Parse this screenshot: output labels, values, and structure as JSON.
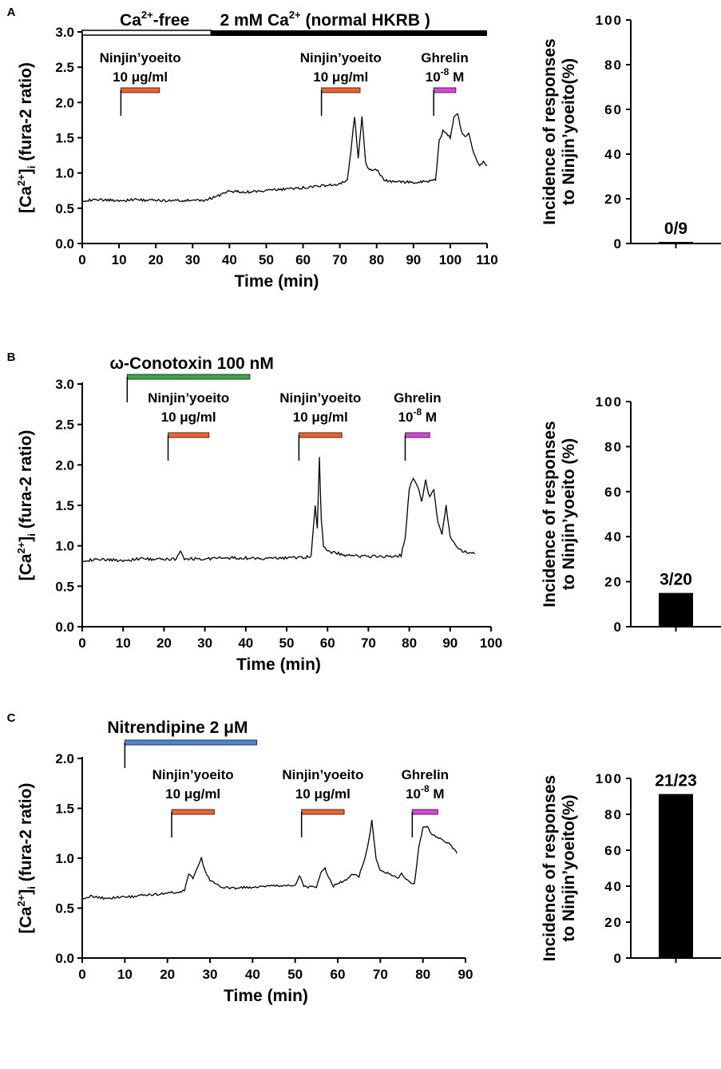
{
  "chart_data": [
    {
      "panel": "A",
      "type": "line",
      "title": "",
      "xlabel": "Time (min)",
      "ylabel": "[Ca2+]i (fura-2 ratio)",
      "ylabel_parts": {
        "pre": "[Ca",
        "sup": "2+",
        "mid": "]",
        "sub": "i",
        "post": " (fura-2 ratio)"
      },
      "xlim": [
        0,
        110
      ],
      "ylim": [
        0,
        3.0
      ],
      "xticks": [
        0,
        10,
        20,
        30,
        40,
        50,
        60,
        70,
        80,
        90,
        100,
        110
      ],
      "yticks": [
        0.0,
        0.5,
        1.0,
        1.5,
        2.0,
        2.5,
        3.0
      ],
      "ytick_labels": [
        "0.0",
        "0.5",
        "1.0",
        "1.5",
        "2.0",
        "2.5",
        "3.0"
      ],
      "series": [
        {
          "name": "[Ca2+]i",
          "x": [
            0,
            5,
            10,
            15,
            20,
            25,
            30,
            33,
            36,
            40,
            45,
            50,
            55,
            60,
            65,
            68,
            70,
            72,
            73,
            74,
            75,
            76,
            77,
            78,
            80,
            82,
            85,
            90,
            94,
            96,
            97,
            98,
            100,
            101,
            102,
            103,
            104,
            105,
            106,
            107,
            108,
            109,
            110
          ],
          "values": [
            0.61,
            0.62,
            0.61,
            0.62,
            0.61,
            0.61,
            0.61,
            0.61,
            0.66,
            0.74,
            0.73,
            0.75,
            0.77,
            0.79,
            0.82,
            0.83,
            0.84,
            0.9,
            1.3,
            1.8,
            1.2,
            1.8,
            1.15,
            1.05,
            1.05,
            0.9,
            0.87,
            0.87,
            0.88,
            0.9,
            1.45,
            1.6,
            1.5,
            1.8,
            1.85,
            1.6,
            1.5,
            1.55,
            1.35,
            1.2,
            1.1,
            1.15,
            1.1
          ]
        }
      ],
      "condition_bars": [
        {
          "label_pre": "Ca",
          "label_sup": "2+",
          "label_post": "-free",
          "x": [
            0,
            35
          ],
          "style": "open"
        },
        {
          "label_pre": "2 mM Ca",
          "label_sup": "2+",
          "label_post": " (normal HKRB )",
          "x": [
            35,
            110
          ],
          "style": "filled"
        }
      ],
      "stimuli": [
        {
          "line1": "Ninjin’yoeito",
          "line2": "10 μg/ml",
          "start": 10.5,
          "end": 21,
          "color": "#f4622a"
        },
        {
          "line1": "Ninjin’yoeito",
          "line2": "10 μg/ml",
          "start": 65,
          "end": 75.5,
          "color": "#f4622a"
        },
        {
          "line1": "Ghrelin",
          "line2_pre": "10",
          "line2_sup": "-8",
          "line2_post": " M",
          "start": 95.5,
          "end": 101.5,
          "color": "#e040e0"
        }
      ],
      "incidence": {
        "value": 0,
        "label": "0/9",
        "ylim": [
          0,
          100
        ],
        "yticks": [
          0,
          20,
          40,
          60,
          80,
          100
        ],
        "ylabel_line1": "Incidence of responses",
        "ylabel_line2": "to Ninjin’yoeito(%)"
      }
    },
    {
      "panel": "B",
      "type": "line",
      "title": "",
      "xlabel": "Time (min)",
      "ylabel": "[Ca2+]i (fura-2 ratio)",
      "ylabel_parts": {
        "pre": "[Ca",
        "sup": "2+",
        "mid": "]",
        "sub": "i",
        "post": " (fura-2 ratio)"
      },
      "xlim": [
        0,
        100
      ],
      "ylim": [
        0,
        3.0
      ],
      "xticks": [
        0,
        10,
        20,
        30,
        40,
        50,
        60,
        70,
        80,
        90,
        100
      ],
      "yticks": [
        0.0,
        0.5,
        1.0,
        1.5,
        2.0,
        2.5,
        3.0
      ],
      "ytick_labels": [
        "0.0",
        "0.5",
        "1.0",
        "1.5",
        "2.0",
        "2.5",
        "3.0"
      ],
      "series": [
        {
          "name": "[Ca2+]i",
          "x": [
            0,
            5,
            10,
            15,
            20,
            23,
            24,
            25,
            30,
            35,
            40,
            45,
            50,
            55,
            56,
            57,
            57.5,
            58,
            58.5,
            59,
            60,
            65,
            70,
            75,
            78,
            79,
            80,
            81,
            82,
            83,
            84,
            85,
            86,
            87,
            88,
            89,
            90,
            92,
            94,
            96
          ],
          "values": [
            0.82,
            0.83,
            0.82,
            0.84,
            0.83,
            0.84,
            0.93,
            0.84,
            0.84,
            0.85,
            0.85,
            0.84,
            0.85,
            0.86,
            0.87,
            1.5,
            1.2,
            2.1,
            1.3,
            1.0,
            0.93,
            0.88,
            0.87,
            0.87,
            0.88,
            1.1,
            1.7,
            1.85,
            1.75,
            1.55,
            1.8,
            1.6,
            1.7,
            1.3,
            1.15,
            1.5,
            1.1,
            0.95,
            0.92,
            0.9
          ]
        }
      ],
      "treatment": {
        "label": "ω-Conotoxin 100 nM",
        "start": 11,
        "end": 41,
        "color": "#3aa64a"
      },
      "stimuli": [
        {
          "line1": "Ninjin’yoeito",
          "line2": "10 μg/ml",
          "start": 21,
          "end": 31,
          "color": "#f4622a"
        },
        {
          "line1": "Ninjin’yoeito",
          "line2": "10 μg/ml",
          "start": 53,
          "end": 63.5,
          "color": "#f4622a"
        },
        {
          "line1": "Ghrelin",
          "line2_pre": "10",
          "line2_sup": "-8",
          "line2_post": " M",
          "start": 79,
          "end": 85,
          "color": "#e040e0"
        }
      ],
      "incidence": {
        "value": 15,
        "label": "3/20",
        "ylim": [
          0,
          100
        ],
        "yticks": [
          0,
          20,
          40,
          60,
          80,
          100
        ],
        "ylabel_line1": "Incidence of responses",
        "ylabel_line2": "to Ninjin’yoeito (%)"
      }
    },
    {
      "panel": "C",
      "type": "line",
      "title": "",
      "xlabel": "Time (min)",
      "ylabel": "[Ca2+]i (fura-2 ratio)",
      "ylabel_parts": {
        "pre": "[Ca",
        "sup": "2+",
        "mid": "]",
        "sub": "i",
        "post": " (fura-2 ratio)"
      },
      "xlim": [
        0,
        90
      ],
      "ylim": [
        0,
        2.0
      ],
      "xticks": [
        0,
        10,
        20,
        30,
        40,
        50,
        60,
        70,
        80,
        90
      ],
      "yticks": [
        0.0,
        0.5,
        1.0,
        1.5,
        2.0
      ],
      "ytick_labels": [
        "0.0",
        "0.5",
        "1.0",
        "1.5",
        "2.0"
      ],
      "series": [
        {
          "name": "[Ca2+]i",
          "x": [
            0,
            2,
            5,
            10,
            15,
            20,
            24,
            25,
            26,
            27,
            28,
            29,
            30,
            32,
            35,
            40,
            45,
            50,
            51,
            52,
            55,
            56,
            57,
            58,
            59,
            60,
            62,
            64,
            65,
            66,
            67,
            68,
            69,
            70,
            72,
            74,
            75,
            76,
            77,
            78,
            79,
            80,
            81,
            82,
            84,
            86,
            88
          ],
          "values": [
            0.6,
            0.62,
            0.6,
            0.61,
            0.63,
            0.65,
            0.67,
            0.85,
            0.8,
            0.9,
            1.0,
            0.85,
            0.78,
            0.72,
            0.7,
            0.71,
            0.72,
            0.73,
            0.82,
            0.72,
            0.7,
            0.85,
            0.9,
            0.8,
            0.72,
            0.75,
            0.78,
            0.85,
            0.82,
            0.95,
            1.1,
            1.38,
            1.0,
            0.88,
            0.85,
            0.8,
            0.84,
            0.78,
            0.76,
            0.74,
            1.1,
            1.3,
            1.32,
            1.25,
            1.2,
            1.15,
            1.05
          ]
        }
      ],
      "treatment": {
        "label": "Nitrendipine 2 μM",
        "start": 10,
        "end": 41,
        "color": "#4a86d8"
      },
      "stimuli": [
        {
          "line1": "Ninjin’yoeito",
          "line2": "10 μg/ml",
          "start": 21,
          "end": 31,
          "color": "#f4622a"
        },
        {
          "line1": "Ninjin’yoeito",
          "line2": "10 μg/ml",
          "start": 51.5,
          "end": 61.5,
          "color": "#f4622a"
        },
        {
          "line1": "Ghrelin",
          "line2_pre": "10",
          "line2_sup": "-8",
          "line2_post": " M",
          "start": 77.5,
          "end": 83.5,
          "color": "#e040e0"
        }
      ],
      "incidence": {
        "value": 91.3,
        "label": "21/23",
        "ylim": [
          0,
          100
        ],
        "yticks": [
          0,
          20,
          40,
          60,
          80,
          100
        ],
        "ylabel_line1": "Incidence of responses",
        "ylabel_line2": "to Ninjin’yoeito(%)"
      }
    }
  ]
}
